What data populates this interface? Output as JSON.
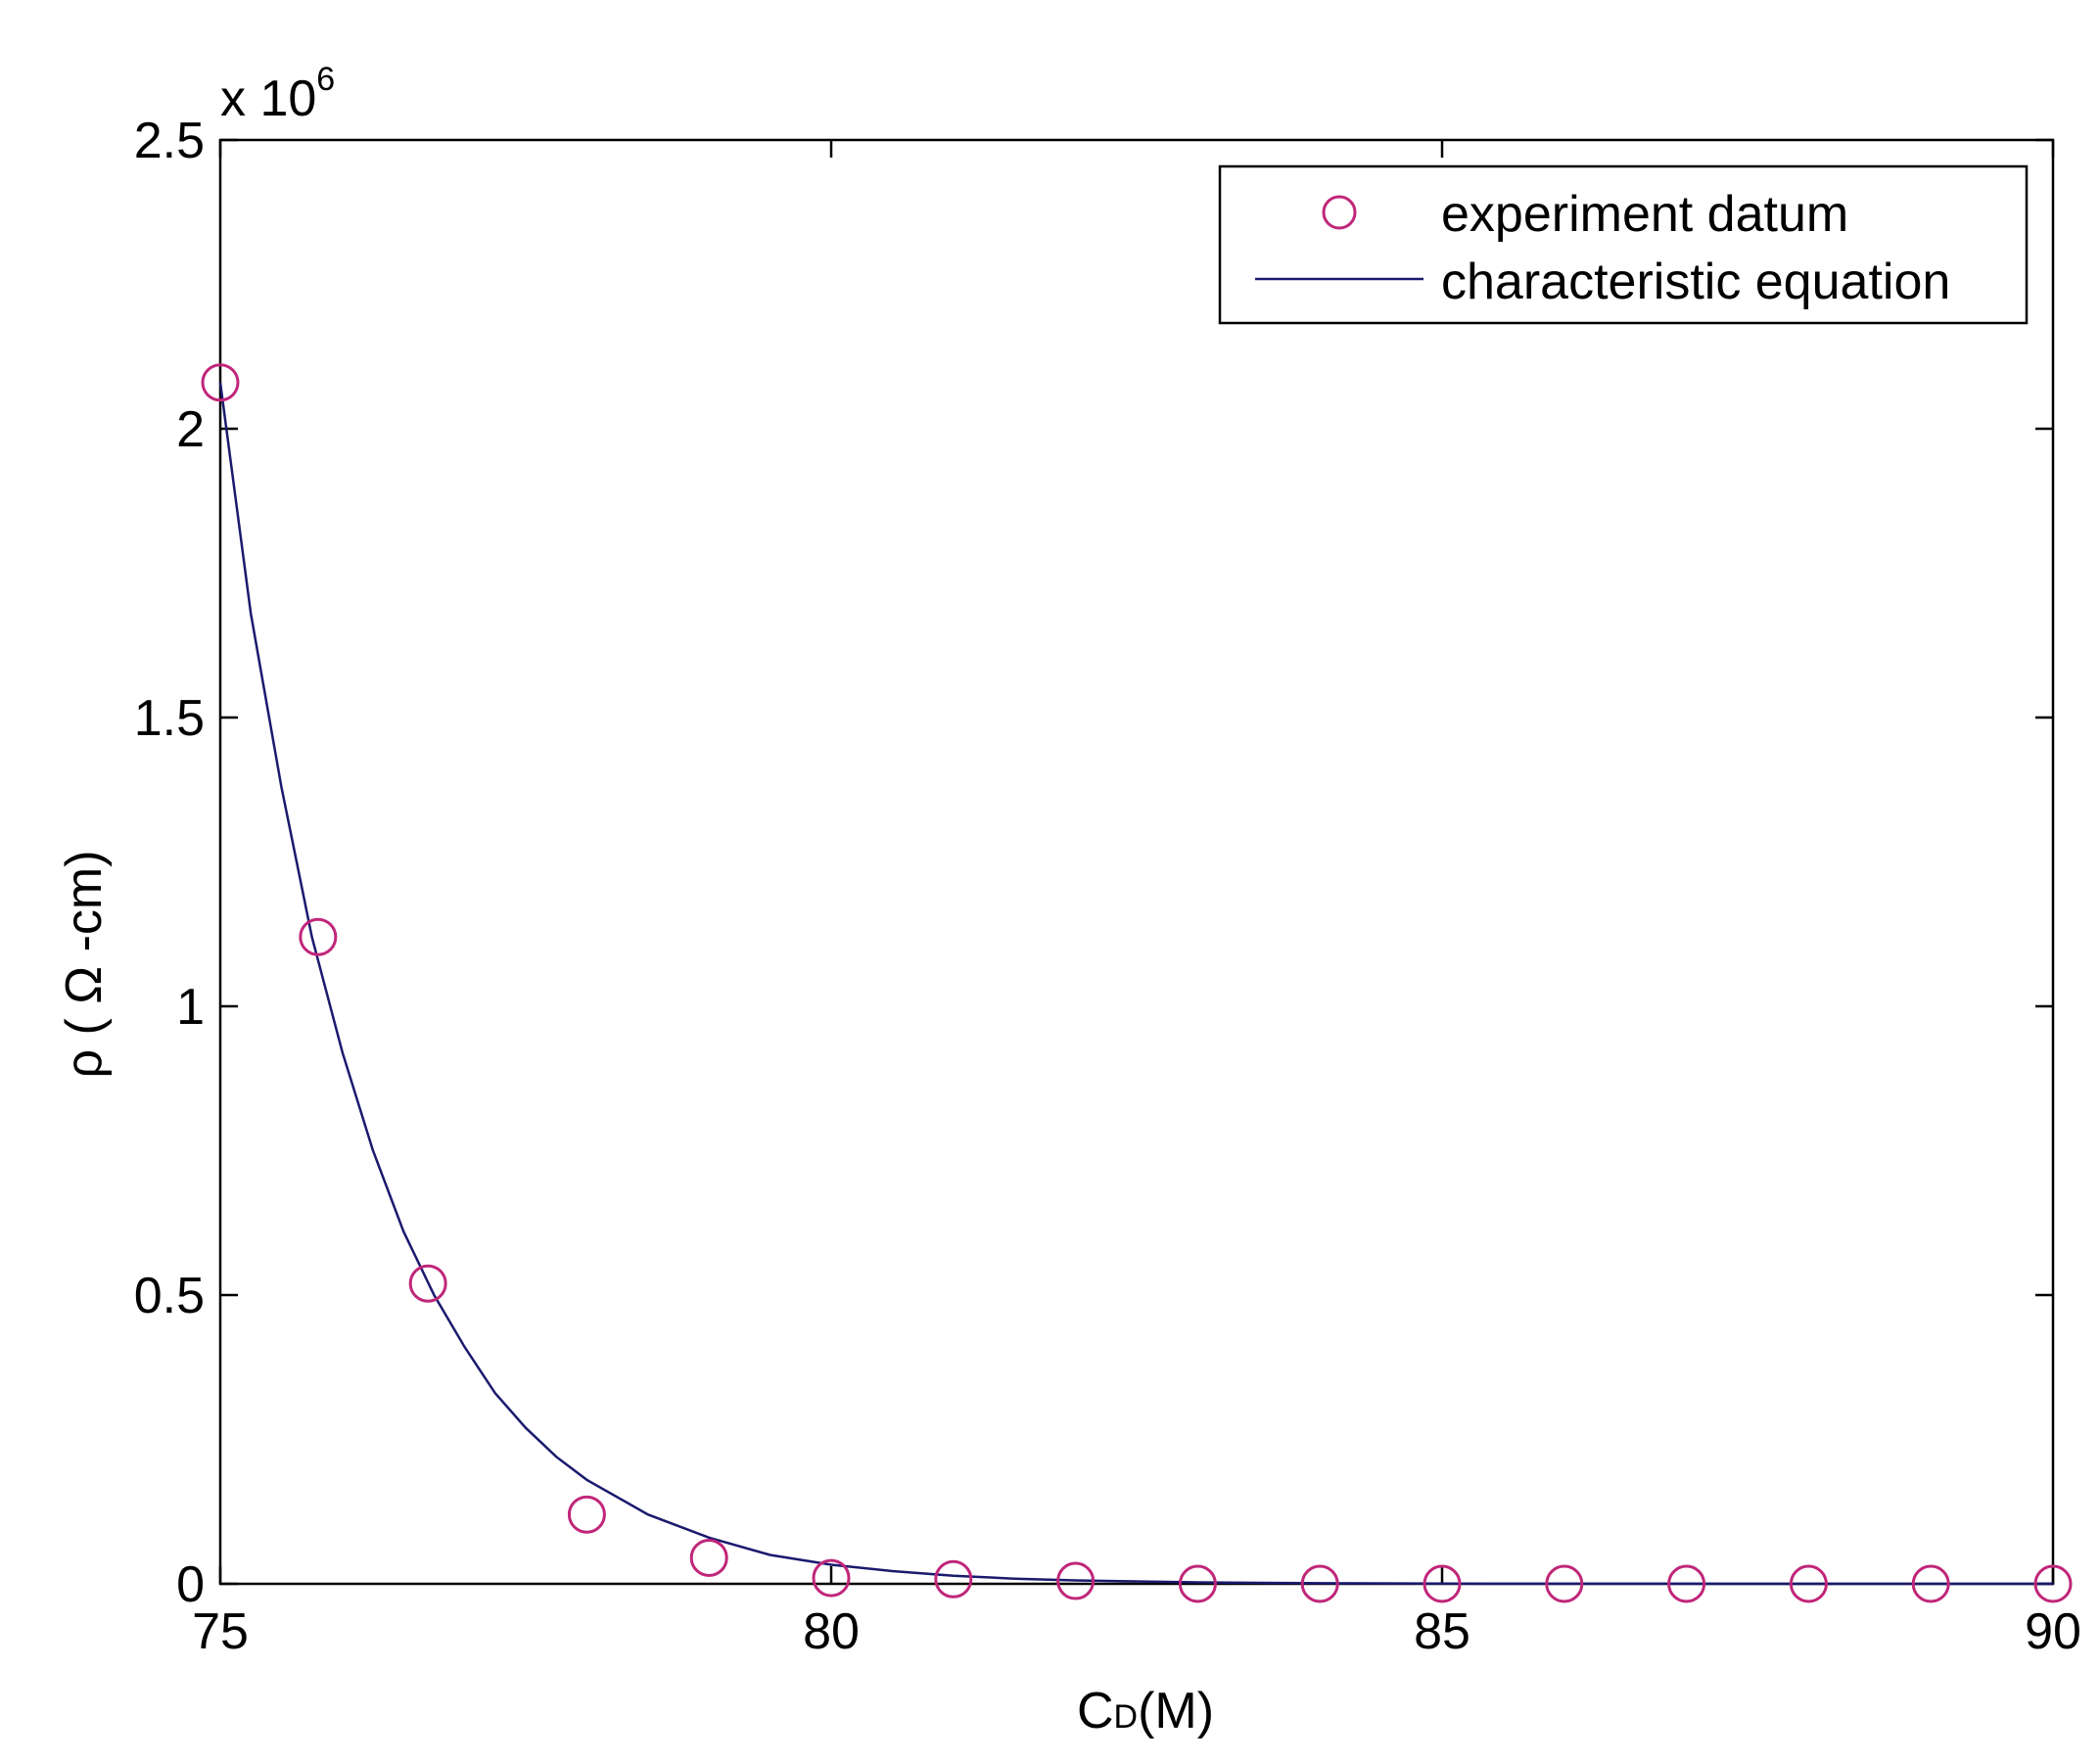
{
  "chart_data": {
    "type": "scatter",
    "xlabel_main": "C",
    "xlabel_sub": "D",
    "xlabel_tail": "(M)",
    "ylabel": "ρ ( Ω -cm)",
    "y_multiplier_base": "x 10",
    "y_multiplier_exp": "6",
    "xlim": [
      75,
      90
    ],
    "ylim": [
      0,
      2.5
    ],
    "x_ticks": [
      75,
      80,
      85,
      90
    ],
    "y_ticks": [
      0,
      0.5,
      1,
      1.5,
      2,
      2.5
    ],
    "x_tick_labels": [
      "75",
      "80",
      "85",
      "90"
    ],
    "y_tick_labels": [
      "0",
      "0.5",
      "1",
      "1.5",
      "2",
      "2.5"
    ],
    "grid": false,
    "legend_position": "top-right",
    "series": [
      {
        "name": "experiment datum",
        "kind": "markers",
        "marker": "circle",
        "color": "#c0267a",
        "points": [
          [
            75,
            2.08
          ],
          [
            75.8,
            1.12
          ],
          [
            76.7,
            0.52
          ],
          [
            78,
            0.12
          ],
          [
            79,
            0.045
          ],
          [
            80,
            0.01
          ],
          [
            81,
            0.008
          ],
          [
            82,
            0.005
          ],
          [
            83,
            0.0
          ],
          [
            84,
            0.0
          ],
          [
            85,
            0.0
          ],
          [
            86,
            0.0
          ],
          [
            87,
            0.0
          ],
          [
            88,
            0.0
          ],
          [
            89,
            0.0
          ],
          [
            90,
            0.0
          ]
        ]
      },
      {
        "name": "characteristic equation",
        "kind": "line",
        "color": "#1a1a6e",
        "points": [
          [
            75,
            2.08
          ],
          [
            75.25,
            1.68
          ],
          [
            75.5,
            1.38
          ],
          [
            75.75,
            1.12
          ],
          [
            76,
            0.92
          ],
          [
            76.25,
            0.75
          ],
          [
            76.5,
            0.61
          ],
          [
            76.75,
            0.5
          ],
          [
            77,
            0.41
          ],
          [
            77.25,
            0.33
          ],
          [
            77.5,
            0.27
          ],
          [
            77.75,
            0.22
          ],
          [
            78,
            0.18
          ],
          [
            78.5,
            0.12
          ],
          [
            79,
            0.08
          ],
          [
            79.5,
            0.05
          ],
          [
            80,
            0.033
          ],
          [
            80.5,
            0.022
          ],
          [
            81,
            0.014
          ],
          [
            81.5,
            0.009
          ],
          [
            82,
            0.006
          ],
          [
            83,
            0.0025
          ],
          [
            84,
            0.001
          ],
          [
            85,
            0.0004
          ],
          [
            86,
            0.0002
          ],
          [
            87,
            0.0001
          ],
          [
            88,
            4e-05
          ],
          [
            89,
            2e-05
          ],
          [
            90,
            1e-05
          ]
        ]
      }
    ]
  }
}
